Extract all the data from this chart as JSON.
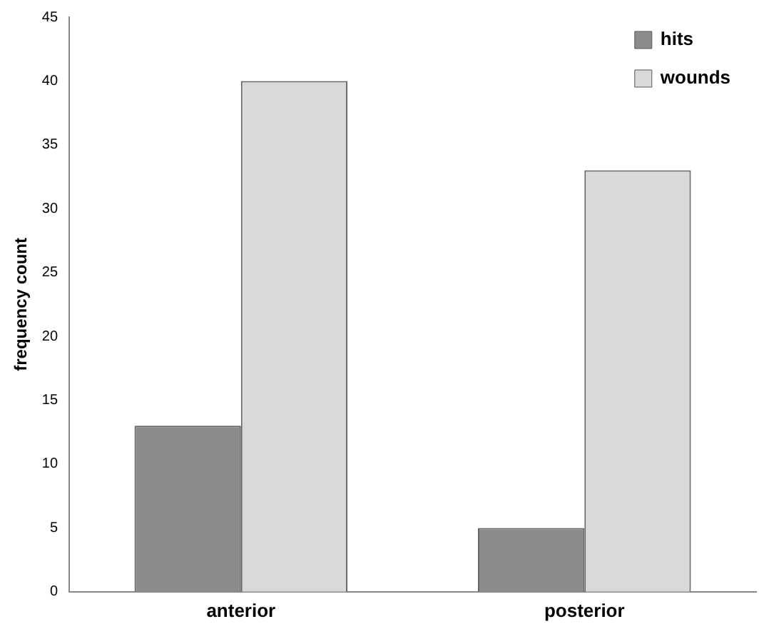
{
  "chart_data": {
    "type": "bar",
    "ylabel": "frequency count",
    "categories": [
      "anterior",
      "posterior"
    ],
    "series": [
      {
        "name": "hits",
        "color": "#8c8c8c",
        "values": [
          13,
          5
        ]
      },
      {
        "name": "wounds",
        "color": "#d9d9d9",
        "values": [
          40,
          33
        ]
      }
    ],
    "ylim": [
      0,
      45
    ],
    "yticks": [
      0,
      5,
      10,
      15,
      20,
      25,
      30,
      35,
      40,
      45
    ],
    "grid": false,
    "legend": "top right"
  }
}
